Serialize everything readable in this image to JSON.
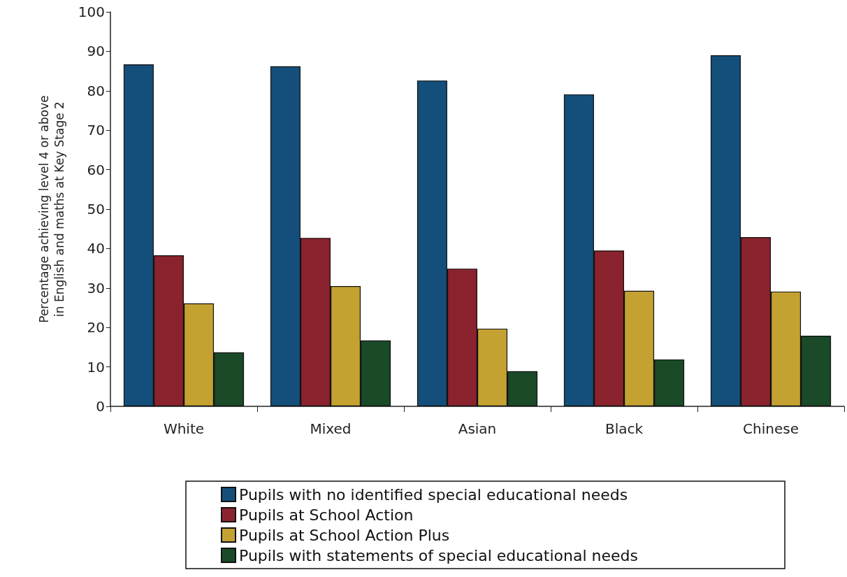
{
  "chart_data": {
    "type": "bar",
    "ylabel": "Percentage achieving level 4 or above\nin English and maths at Key Stage 2",
    "categories": [
      "White",
      "Mixed",
      "Asian",
      "Black",
      "Chinese"
    ],
    "series": [
      {
        "name": "Pupils with no identified special educational needs",
        "color": "#144f7b",
        "values": [
          86.7,
          86.2,
          82.6,
          79.1,
          89.0
        ]
      },
      {
        "name": "Pupils at School Action",
        "color": "#8a232d",
        "values": [
          38.3,
          42.7,
          34.9,
          39.5,
          42.9
        ]
      },
      {
        "name": "Pupils at School Action Plus",
        "color": "#c4a232",
        "values": [
          26.1,
          30.5,
          19.7,
          29.3,
          29.1
        ]
      },
      {
        "name": "Pupils with statements of special educational needs",
        "color": "#1a4a27",
        "values": [
          13.7,
          16.7,
          8.9,
          11.9,
          17.9
        ]
      }
    ],
    "ylim": [
      0,
      100
    ],
    "yticks": [
      0,
      10,
      20,
      30,
      40,
      50,
      60,
      70,
      80,
      90,
      100
    ],
    "grid": false,
    "legend": "bottom"
  }
}
